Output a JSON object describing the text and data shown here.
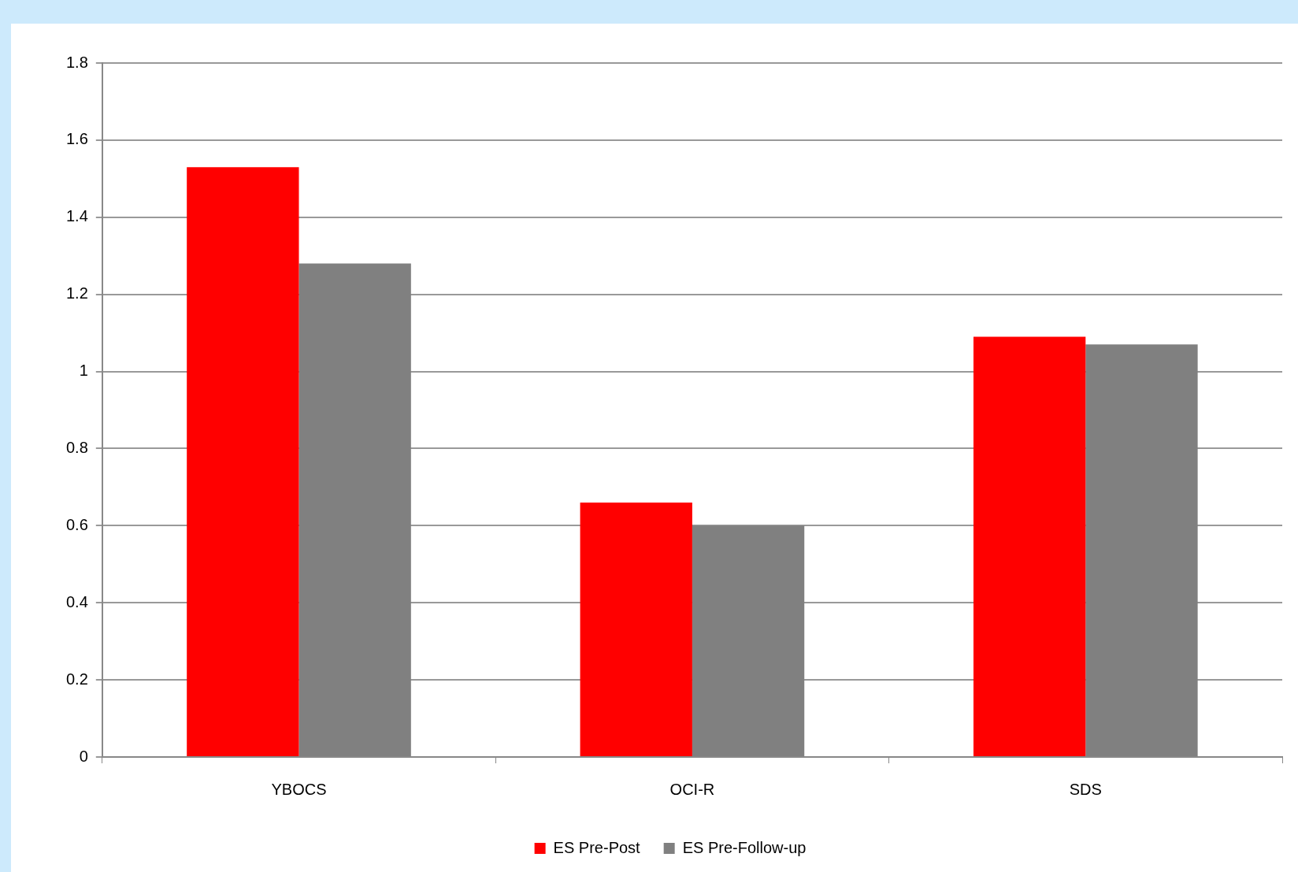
{
  "chart_data": {
    "type": "bar",
    "categories": [
      "YBOCS",
      "OCI-R",
      "SDS"
    ],
    "series": [
      {
        "name": "ES Pre-Post",
        "color": "#ff0000",
        "values": [
          1.53,
          0.66,
          1.09
        ]
      },
      {
        "name": "ES Pre-Follow-up",
        "color": "#808080",
        "values": [
          1.28,
          0.6,
          1.07
        ]
      }
    ],
    "ylim": [
      0,
      1.8
    ],
    "yticks": [
      0,
      0.2,
      0.4,
      0.6,
      0.8,
      1,
      1.2,
      1.4,
      1.6,
      1.8
    ],
    "grid": "y",
    "legend": "bottom"
  }
}
